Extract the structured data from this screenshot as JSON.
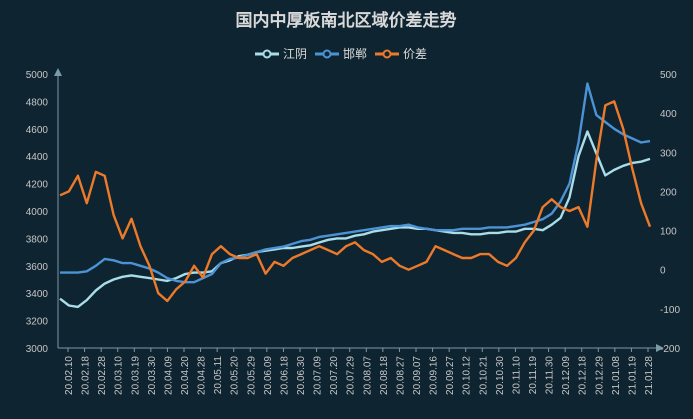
{
  "chart_data": {
    "type": "line",
    "title": "国内中厚板南北区域价差走势",
    "grid": false,
    "legend_position": "top-center",
    "x_tick_labels": [
      "20.02.10",
      "20.02.18",
      "20.02.28",
      "20.03.10",
      "20.03.19",
      "20.03.30",
      "20.04.09",
      "20.04.20",
      "20.04.28",
      "20.05.11",
      "20.05.20",
      "20.05.29",
      "20.06.09",
      "20.06.18",
      "20.06.30",
      "20.07.09",
      "20.07.20",
      "20.07.29",
      "20.08.07",
      "20.08.18",
      "20.08.27",
      "20.09.07",
      "20.09.16",
      "20.09.27",
      "20.10.12",
      "20.10.21",
      "20.10.30",
      "20.11.10",
      "20.11.19",
      "20.11.30",
      "20.12.09",
      "20.12.18",
      "20.12.29",
      "21.01.08",
      "21.01.19",
      "21.01.28"
    ],
    "y_left": {
      "min": 3000,
      "max": 5000,
      "ticks": [
        3000,
        3200,
        3400,
        3600,
        3800,
        4000,
        4200,
        4400,
        4600,
        4800,
        5000
      ]
    },
    "y_right": {
      "min": -200,
      "max": 500,
      "ticks": [
        -200,
        -100,
        0,
        100,
        200,
        300,
        400,
        500
      ]
    },
    "series": [
      {
        "name": "江阴",
        "axis": "left",
        "color": "#a8dde9",
        "values": [
          3360,
          3310,
          3300,
          3350,
          3420,
          3470,
          3500,
          3520,
          3530,
          3520,
          3510,
          3500,
          3490,
          3510,
          3540,
          3550,
          3550,
          3560,
          3620,
          3640,
          3670,
          3680,
          3700,
          3710,
          3720,
          3730,
          3730,
          3740,
          3750,
          3770,
          3790,
          3800,
          3800,
          3820,
          3830,
          3850,
          3860,
          3870,
          3880,
          3880,
          3870,
          3870,
          3860,
          3850,
          3840,
          3840,
          3830,
          3830,
          3840,
          3840,
          3850,
          3850,
          3870,
          3870,
          3860,
          3900,
          3950,
          4100,
          4400,
          4580,
          4420,
          4260,
          4300,
          4330,
          4350,
          4360,
          4380
        ]
      },
      {
        "name": "邯郸",
        "axis": "left",
        "color": "#4c93d6",
        "values": [
          3550,
          3550,
          3550,
          3560,
          3600,
          3650,
          3640,
          3620,
          3620,
          3600,
          3580,
          3550,
          3510,
          3490,
          3480,
          3480,
          3510,
          3540,
          3620,
          3650,
          3660,
          3680,
          3700,
          3720,
          3730,
          3740,
          3760,
          3780,
          3790,
          3810,
          3820,
          3830,
          3840,
          3850,
          3860,
          3870,
          3880,
          3890,
          3890,
          3900,
          3880,
          3870,
          3860,
          3860,
          3860,
          3870,
          3870,
          3870,
          3880,
          3880,
          3880,
          3890,
          3900,
          3920,
          3940,
          3980,
          4070,
          4200,
          4500,
          4930,
          4700,
          4650,
          4600,
          4560,
          4530,
          4500,
          4510
        ]
      },
      {
        "name": "价差",
        "axis": "right",
        "color": "#ec7a2a",
        "values": [
          190,
          200,
          240,
          170,
          250,
          240,
          140,
          80,
          130,
          60,
          10,
          -60,
          -80,
          -50,
          -30,
          10,
          -20,
          40,
          60,
          40,
          30,
          30,
          40,
          -10,
          20,
          10,
          30,
          40,
          50,
          60,
          50,
          40,
          60,
          70,
          50,
          40,
          20,
          30,
          10,
          0,
          10,
          20,
          60,
          50,
          40,
          30,
          30,
          40,
          40,
          20,
          10,
          30,
          70,
          100,
          160,
          180,
          160,
          150,
          160,
          110,
          280,
          420,
          430,
          360,
          260,
          170,
          110
        ]
      }
    ]
  }
}
